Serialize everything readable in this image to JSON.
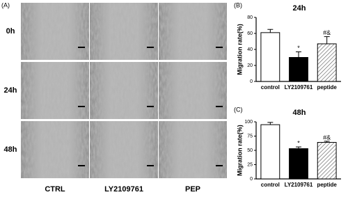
{
  "panel_a": {
    "label": "(A)",
    "rows": [
      "0h",
      "24h",
      "48h"
    ],
    "columns": [
      "CTRL",
      "LY2109761",
      "PEP"
    ]
  },
  "chart_data": [
    {
      "type": "bar",
      "label": "(B)",
      "title": "24h",
      "y_label": "Migration rate(%)",
      "categories": [
        "control",
        "LY2109761",
        "peptide"
      ],
      "values": [
        61,
        30,
        47
      ],
      "errors": [
        4,
        7,
        9
      ],
      "annotations": [
        null,
        "*",
        "#&"
      ],
      "colors": [
        "#ffffff",
        "#000000",
        "#ffffff"
      ],
      "hatch": [
        false,
        false,
        true
      ],
      "ylim": [
        0,
        80
      ],
      "yticks": [
        0,
        20,
        40,
        60,
        80
      ]
    },
    {
      "type": "bar",
      "label": "(C)",
      "title": "48h",
      "y_label": "Migration rate(%)",
      "categories": [
        "control",
        "LY2109761",
        "peptide"
      ],
      "values": [
        95,
        53,
        64
      ],
      "errors": [
        4,
        3,
        2
      ],
      "annotations": [
        null,
        "*",
        "#&"
      ],
      "colors": [
        "#ffffff",
        "#000000",
        "#ffffff"
      ],
      "hatch": [
        false,
        false,
        true
      ],
      "ylim": [
        0,
        100
      ],
      "yticks": [
        0,
        25,
        50,
        75,
        100
      ]
    }
  ]
}
